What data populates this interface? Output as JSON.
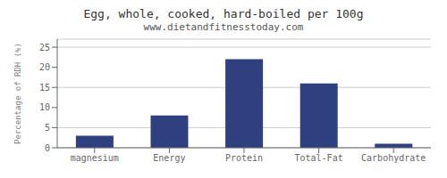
{
  "chart_data": {
    "type": "bar",
    "title": "Egg, whole, cooked, hard-boiled per 100g",
    "subtitle": "www.dietandfitnesstoday.com",
    "categories": [
      "magnesium",
      "Energy",
      "Protein",
      "Total-Fat",
      "Carbohydrate"
    ],
    "values": [
      3,
      8,
      22,
      16,
      1
    ],
    "color": "#2e4080",
    "ylabel": "Percentage of RDH (%)",
    "ylim": [
      0,
      27
    ],
    "yticks": [
      0,
      5,
      10,
      15,
      20,
      25
    ],
    "grid": true
  }
}
